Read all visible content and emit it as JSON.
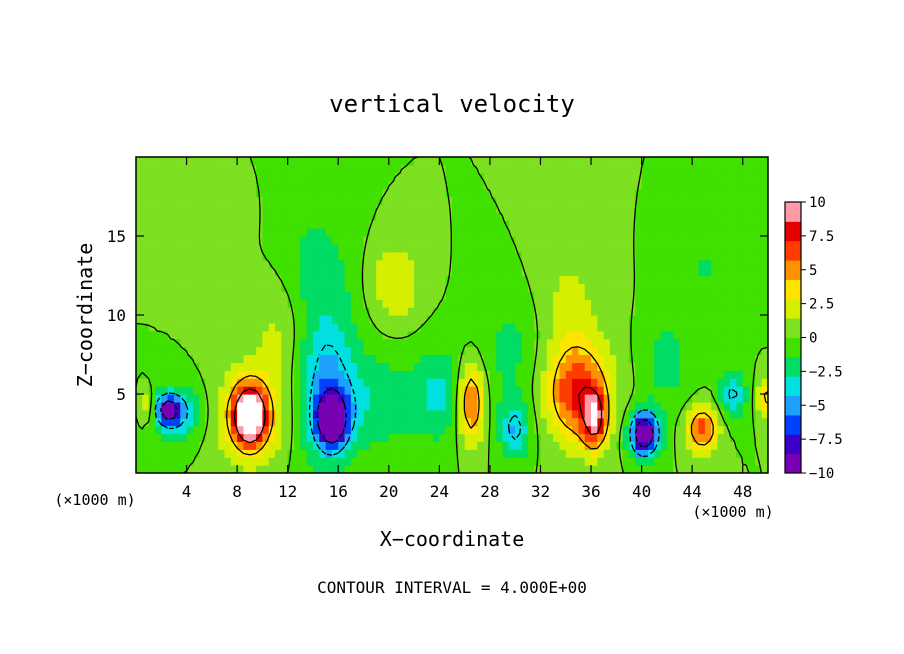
{
  "chart_data": {
    "type": "heatmap",
    "title": "vertical velocity",
    "xlabel": "X−coordinate",
    "ylabel": "Z−coordinate",
    "x_unit_left": "(×1000 m)",
    "x_unit_right": "(×1000 m)",
    "footer": "CONTOUR INTERVAL = 4.000E+00",
    "xlim": [
      0,
      50
    ],
    "ylim": [
      0,
      20
    ],
    "x_ticks": [
      4,
      8,
      12,
      16,
      20,
      24,
      28,
      32,
      36,
      40,
      44,
      48
    ],
    "y_ticks": [
      5,
      10,
      15
    ],
    "colorbar": {
      "ticks": [
        "10",
        "7.5",
        "5",
        "2.5",
        "0",
        "−2.5",
        "−5",
        "−7.5",
        "−10"
      ],
      "range": [
        -10,
        10
      ],
      "colors": [
        "#7a00b4",
        "#3c00c8",
        "#0040ff",
        "#1ea0ff",
        "#00e0e0",
        "#00dc64",
        "#40e000",
        "#7de020",
        "#d4f000",
        "#ffe400",
        "#ff9000",
        "#ff3c00",
        "#e60000",
        "#ff9aa8"
      ]
    },
    "features": [
      {
        "x": 2.5,
        "z": 4.0,
        "w": -8.0,
        "sx": 1.0,
        "sz": 0.9
      },
      {
        "x": 3.5,
        "z": 3.8,
        "w": -4.0,
        "sx": 2.0,
        "sz": 1.8
      },
      {
        "x": 0.8,
        "z": 4.3,
        "w": 4.0,
        "sx": 0.5,
        "sz": 1.0
      },
      {
        "x": 9.0,
        "z": 3.6,
        "w": 12.0,
        "sx": 1.2,
        "sz": 1.8
      },
      {
        "x": 9.0,
        "z": 3.6,
        "w": 4.0,
        "sx": 3.0,
        "sz": 3.0
      },
      {
        "x": 11.5,
        "z": 9.0,
        "w": 2.0,
        "sx": 2.5,
        "sz": 4.0
      },
      {
        "x": 15.5,
        "z": 3.4,
        "w": -12.0,
        "sx": 1.1,
        "sz": 1.6
      },
      {
        "x": 15.0,
        "z": 5.5,
        "w": -5.0,
        "sx": 2.5,
        "sz": 5.0
      },
      {
        "x": 14.0,
        "z": 13.0,
        "w": -2.0,
        "sx": 3.0,
        "sz": 4.0
      },
      {
        "x": 19.5,
        "z": 4.5,
        "w": -2.5,
        "sx": 3.0,
        "sz": 3.0
      },
      {
        "x": 20.5,
        "z": 12.0,
        "w": 3.0,
        "sx": 2.0,
        "sz": 2.5
      },
      {
        "x": 24.0,
        "z": 5.0,
        "w": -3.0,
        "sx": 2.0,
        "sz": 3.0
      },
      {
        "x": 26.5,
        "z": 4.5,
        "w": 7.0,
        "sx": 1.0,
        "sz": 2.5
      },
      {
        "x": 30.0,
        "z": 2.8,
        "w": -4.5,
        "sx": 1.2,
        "sz": 1.8
      },
      {
        "x": 30.0,
        "z": 8.0,
        "w": -2.0,
        "sx": 3.0,
        "sz": 4.0
      },
      {
        "x": 35.0,
        "z": 5.0,
        "w": 7.0,
        "sx": 2.5,
        "sz": 3.0
      },
      {
        "x": 36.3,
        "z": 3.3,
        "w": 7.0,
        "sx": 0.9,
        "sz": 1.8
      },
      {
        "x": 34.0,
        "z": 10.0,
        "w": 2.0,
        "sx": 3.0,
        "sz": 5.0
      },
      {
        "x": 40.2,
        "z": 2.5,
        "w": -12.0,
        "sx": 1.1,
        "sz": 1.4
      },
      {
        "x": 44.8,
        "z": 2.8,
        "w": 7.0,
        "sx": 1.2,
        "sz": 1.4
      },
      {
        "x": 42.0,
        "z": 7.0,
        "w": -2.0,
        "sx": 2.0,
        "sz": 3.0
      },
      {
        "x": 47.2,
        "z": 5.0,
        "w": -4.5,
        "sx": 1.0,
        "sz": 1.5
      },
      {
        "x": 49.8,
        "z": 4.8,
        "w": 5.0,
        "sx": 0.6,
        "sz": 1.2
      },
      {
        "x": 45.0,
        "z": 13.0,
        "w": -1.5,
        "sx": 3.0,
        "sz": 3.0
      },
      {
        "x": 6.5,
        "z": 16.0,
        "w": 1.5,
        "sx": 2.0,
        "sz": 2.0
      }
    ]
  }
}
